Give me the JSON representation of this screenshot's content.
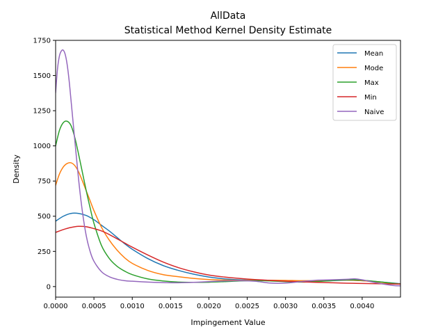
{
  "chart_data": {
    "type": "line",
    "title_line1": "AllData",
    "title_line2": "Statistical Method Kernel Density Estimate",
    "xlabel": "Impingement Value",
    "ylabel": "Density",
    "xlim": [
      0,
      0.0045
    ],
    "ylim": [
      -75,
      1750
    ],
    "x_ticks": [
      "0.0000",
      "0.0005",
      "0.0010",
      "0.0015",
      "0.0020",
      "0.0025",
      "0.0030",
      "0.0035",
      "0.0040"
    ],
    "x_tick_values": [
      0,
      0.0005,
      0.001,
      0.0015,
      0.002,
      0.0025,
      0.003,
      0.0035,
      0.004
    ],
    "y_ticks": [
      "0",
      "250",
      "500",
      "750",
      "1000",
      "1250",
      "1500",
      "1750"
    ],
    "y_tick_values": [
      0,
      250,
      500,
      750,
      1000,
      1250,
      1500,
      1750
    ],
    "grid": false,
    "legend_position": "top-right",
    "series": [
      {
        "name": "Mean",
        "color": "#1f77b4",
        "x": [
          0,
          0.0001,
          0.0002,
          0.0003,
          0.0004,
          0.0005,
          0.0006,
          0.0007,
          0.0008,
          0.0009,
          0.001,
          0.0012,
          0.0014,
          0.0016,
          0.0018,
          0.002,
          0.0022,
          0.0024,
          0.0026,
          0.0028,
          0.003,
          0.0032,
          0.0034,
          0.0036,
          0.0038,
          0.004,
          0.0042,
          0.0045
        ],
        "y": [
          465,
          500,
          520,
          520,
          505,
          475,
          435,
          395,
          350,
          305,
          265,
          200,
          150,
          115,
          88,
          68,
          55,
          48,
          45,
          42,
          38,
          36,
          38,
          42,
          45,
          42,
          35,
          20
        ]
      },
      {
        "name": "Mode",
        "color": "#ff7f0e",
        "x": [
          0,
          5e-05,
          0.0001,
          0.00015,
          0.0002,
          0.00025,
          0.0003,
          0.00035,
          0.0004,
          0.00045,
          0.0005,
          0.0006,
          0.0007,
          0.0008,
          0.0009,
          0.001,
          0.0012,
          0.0014,
          0.0016,
          0.0018,
          0.002,
          0.0022,
          0.0024,
          0.0026,
          0.0028,
          0.003,
          0.0032,
          0.0034,
          0.0036,
          0.0038,
          0.004,
          0.0042,
          0.0045
        ],
        "y": [
          720,
          800,
          850,
          875,
          880,
          860,
          815,
          750,
          680,
          610,
          540,
          420,
          330,
          260,
          205,
          165,
          115,
          85,
          70,
          58,
          50,
          46,
          44,
          45,
          45,
          44,
          42,
          42,
          44,
          46,
          42,
          32,
          18
        ]
      },
      {
        "name": "Max",
        "color": "#2ca02c",
        "x": [
          0,
          5e-05,
          0.0001,
          0.00015,
          0.0002,
          0.00025,
          0.0003,
          0.00035,
          0.0004,
          0.00045,
          0.0005,
          0.0006,
          0.0007,
          0.0008,
          0.0009,
          0.001,
          0.0012,
          0.0014,
          0.0016,
          0.0018,
          0.002,
          0.0022,
          0.0024,
          0.0026,
          0.0028,
          0.003,
          0.0032,
          0.0034,
          0.0036,
          0.0038,
          0.004,
          0.0042,
          0.0045
        ],
        "y": [
          1000,
          1110,
          1165,
          1175,
          1145,
          1060,
          940,
          810,
          680,
          560,
          450,
          290,
          200,
          145,
          110,
          85,
          55,
          40,
          32,
          30,
          31,
          35,
          40,
          42,
          40,
          35,
          32,
          35,
          42,
          48,
          45,
          35,
          18
        ]
      },
      {
        "name": "Min",
        "color": "#d62728",
        "x": [
          0,
          0.0001,
          0.0002,
          0.0003,
          0.0004,
          0.0005,
          0.0006,
          0.0007,
          0.0008,
          0.0009,
          0.001,
          0.0012,
          0.0014,
          0.0016,
          0.0018,
          0.002,
          0.0022,
          0.0024,
          0.0026,
          0.0028,
          0.003,
          0.0032,
          0.0034,
          0.0036,
          0.0038,
          0.004,
          0.0042,
          0.0045
        ],
        "y": [
          385,
          405,
          420,
          428,
          425,
          412,
          395,
          370,
          340,
          310,
          280,
          225,
          175,
          135,
          105,
          82,
          68,
          58,
          50,
          44,
          38,
          34,
          30,
          27,
          24,
          22,
          20,
          17
        ]
      },
      {
        "name": "Naive",
        "color": "#9467bd",
        "x": [
          0,
          2.5e-05,
          5e-05,
          7.5e-05,
          0.0001,
          0.000125,
          0.00015,
          0.000175,
          0.0002,
          0.00025,
          0.0003,
          0.00035,
          0.0004,
          0.00045,
          0.0005,
          0.0006,
          0.0007,
          0.0008,
          0.0009,
          0.001,
          0.0012,
          0.0014,
          0.0016,
          0.0018,
          0.002,
          0.0022,
          0.0024,
          0.0026,
          0.0028,
          0.003,
          0.0032,
          0.0034,
          0.0036,
          0.0038,
          0.0039,
          0.004,
          0.0042,
          0.0044,
          0.0045
        ],
        "y": [
          1380,
          1550,
          1640,
          1675,
          1680,
          1650,
          1580,
          1470,
          1330,
          1040,
          760,
          530,
          360,
          250,
          180,
          105,
          70,
          52,
          42,
          38,
          32,
          28,
          27,
          30,
          35,
          40,
          42,
          38,
          25,
          25,
          35,
          45,
          48,
          52,
          55,
          48,
          25,
          8,
          5
        ]
      }
    ]
  }
}
